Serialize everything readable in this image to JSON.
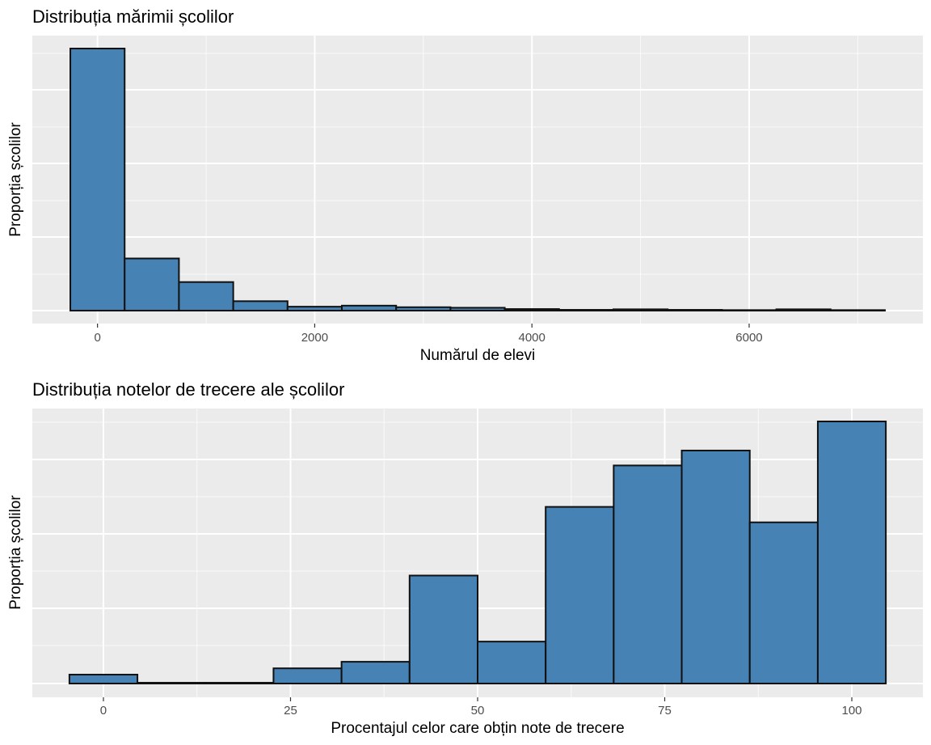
{
  "colors": {
    "bar_fill": "#4682b4",
    "bar_stroke": "#111111",
    "panel_background": "#ebebeb",
    "grid": "#ffffff"
  },
  "chart_data": [
    {
      "type": "bar",
      "subtype": "histogram",
      "title": "Distribuția mărimii școlilor",
      "xlabel": "Numărul de elevi",
      "ylabel": "Proporția școlilor",
      "xlim": [
        -600,
        7600
      ],
      "ylim": [
        0,
        1
      ],
      "x_ticks": [
        0,
        2000,
        4000,
        6000
      ],
      "x_tick_labels": [
        "0",
        "2000",
        "4000",
        "6000"
      ],
      "y_tick_labels_shown": false,
      "grid": true,
      "bin_width": 500,
      "bins": [
        {
          "start": -250,
          "end": 250,
          "value": 1.0
        },
        {
          "start": 250,
          "end": 750,
          "value": 0.199
        },
        {
          "start": 750,
          "end": 1250,
          "value": 0.109
        },
        {
          "start": 1250,
          "end": 1750,
          "value": 0.036
        },
        {
          "start": 1750,
          "end": 2250,
          "value": 0.015
        },
        {
          "start": 2250,
          "end": 2750,
          "value": 0.019
        },
        {
          "start": 2750,
          "end": 3250,
          "value": 0.013
        },
        {
          "start": 3250,
          "end": 3750,
          "value": 0.011
        },
        {
          "start": 3750,
          "end": 4250,
          "value": 0.006
        },
        {
          "start": 4250,
          "end": 4750,
          "value": 0.003
        },
        {
          "start": 4750,
          "end": 5250,
          "value": 0.005
        },
        {
          "start": 5250,
          "end": 5750,
          "value": 0.003
        },
        {
          "start": 5750,
          "end": 6250,
          "value": 0.002
        },
        {
          "start": 6250,
          "end": 6750,
          "value": 0.005
        },
        {
          "start": 6750,
          "end": 7250,
          "value": 0.002
        }
      ]
    },
    {
      "type": "bar",
      "subtype": "histogram",
      "title": "Distribuția notelor de trecere ale școlilor",
      "xlabel": "Procentajul celor care obțin note de trecere",
      "ylabel": "Proporția școlilor",
      "xlim": [
        -9.5,
        109.5
      ],
      "ylim": [
        0,
        1
      ],
      "x_ticks": [
        0,
        25,
        50,
        75,
        100
      ],
      "x_tick_labels": [
        "0",
        "25",
        "50",
        "75",
        "100"
      ],
      "y_tick_labels_shown": false,
      "grid": true,
      "bin_width": 9.09,
      "bins": [
        {
          "start": -4.545,
          "end": 4.545,
          "value": 0.034
        },
        {
          "start": 4.545,
          "end": 13.636,
          "value": 0.003
        },
        {
          "start": 13.636,
          "end": 22.727,
          "value": 0.003
        },
        {
          "start": 22.727,
          "end": 31.818,
          "value": 0.058
        },
        {
          "start": 31.818,
          "end": 40.909,
          "value": 0.083
        },
        {
          "start": 40.909,
          "end": 50.0,
          "value": 0.412
        },
        {
          "start": 50.0,
          "end": 59.091,
          "value": 0.16
        },
        {
          "start": 59.091,
          "end": 68.182,
          "value": 0.674
        },
        {
          "start": 68.182,
          "end": 77.273,
          "value": 0.832
        },
        {
          "start": 77.273,
          "end": 86.364,
          "value": 0.889
        },
        {
          "start": 86.364,
          "end": 95.455,
          "value": 0.615
        },
        {
          "start": 95.455,
          "end": 104.545,
          "value": 1.0
        }
      ]
    }
  ]
}
